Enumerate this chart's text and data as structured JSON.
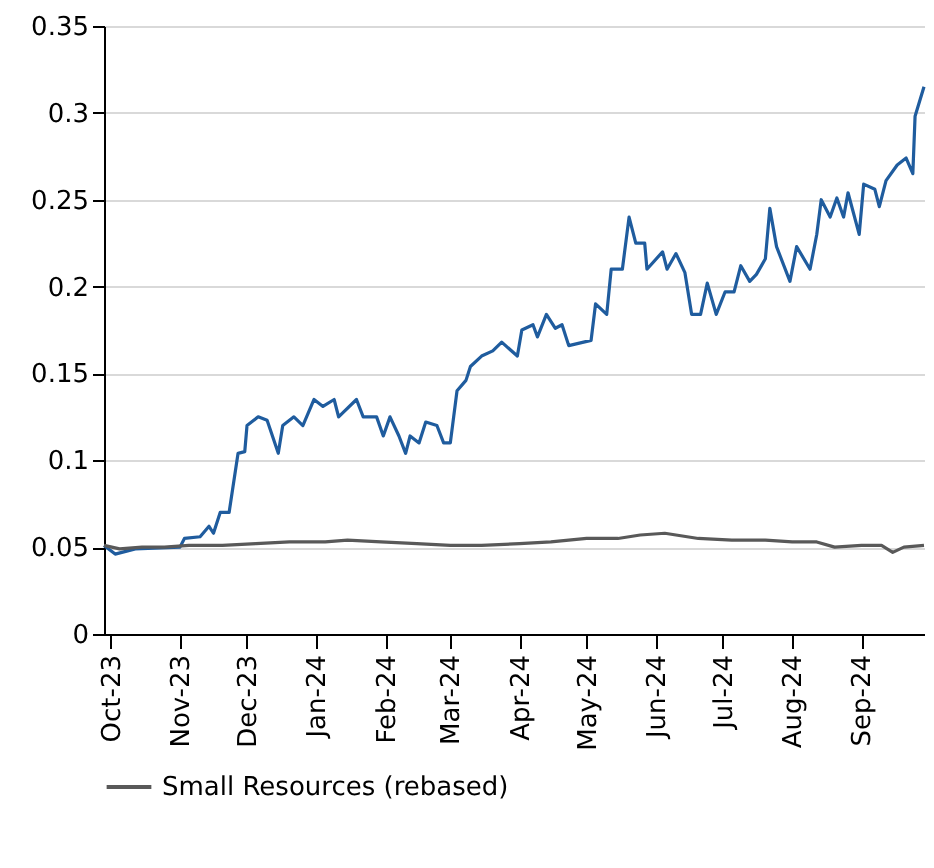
{
  "chart_data": {
    "type": "line",
    "xlim": [
      "2023-09-28",
      "2024-09-29"
    ],
    "xticks": [
      {
        "value": "2023-10-01",
        "label": "Oct-23"
      },
      {
        "value": "2023-11-01",
        "label": "Nov-23"
      },
      {
        "value": "2023-12-01",
        "label": "Dec-23"
      },
      {
        "value": "2024-01-01",
        "label": "Jan-24"
      },
      {
        "value": "2024-02-01",
        "label": "Feb-24"
      },
      {
        "value": "2024-03-01",
        "label": "Mar-24"
      },
      {
        "value": "2024-04-01",
        "label": "Apr-24"
      },
      {
        "value": "2024-05-01",
        "label": "May-24"
      },
      {
        "value": "2024-06-01",
        "label": "Jun-24"
      },
      {
        "value": "2024-07-01",
        "label": "Jul-24"
      },
      {
        "value": "2024-08-01",
        "label": "Aug-24"
      },
      {
        "value": "2024-09-01",
        "label": "Sep-24"
      }
    ],
    "ylim": [
      0,
      0.35
    ],
    "yticks": [
      0,
      0.05,
      0.1,
      0.15,
      0.2,
      0.25,
      0.3,
      0.35
    ],
    "grid": "y",
    "legend": "bottom",
    "line_style": "solid",
    "series": [
      {
        "color": "#1f5c9e",
        "x": [
          "2023-09-28",
          "2023-10-03",
          "2023-10-12",
          "2023-11-01",
          "2023-11-03",
          "2023-11-10",
          "2023-11-14",
          "2023-11-16",
          "2023-11-19",
          "2023-11-23",
          "2023-11-27",
          "2023-11-30",
          "2023-12-01",
          "2023-12-06",
          "2023-12-10",
          "2023-12-15",
          "2023-12-17",
          "2023-12-22",
          "2023-12-26",
          "2023-12-31",
          "2024-01-04",
          "2024-01-09",
          "2024-01-11",
          "2024-01-19",
          "2024-01-22",
          "2024-01-28",
          "2024-01-31",
          "2024-02-03",
          "2024-02-07",
          "2024-02-10",
          "2024-02-12",
          "2024-02-16",
          "2024-02-19",
          "2024-02-24",
          "2024-02-27",
          "2024-03-01",
          "2024-03-04",
          "2024-03-08",
          "2024-03-10",
          "2024-03-15",
          "2024-03-20",
          "2024-03-24",
          "2024-03-31",
          "2024-04-02",
          "2024-04-07",
          "2024-04-09",
          "2024-04-13",
          "2024-04-17",
          "2024-04-20",
          "2024-04-23",
          "2024-05-03",
          "2024-05-05",
          "2024-05-10",
          "2024-05-12",
          "2024-05-17",
          "2024-05-20",
          "2024-05-23",
          "2024-05-27",
          "2024-05-28",
          "2024-06-04",
          "2024-06-06",
          "2024-06-10",
          "2024-06-14",
          "2024-06-17",
          "2024-06-21",
          "2024-06-24",
          "2024-06-28",
          "2024-07-02",
          "2024-07-06",
          "2024-07-09",
          "2024-07-13",
          "2024-07-16",
          "2024-07-20",
          "2024-07-22",
          "2024-07-25",
          "2024-07-31",
          "2024-08-03",
          "2024-08-09",
          "2024-08-12",
          "2024-08-14",
          "2024-08-18",
          "2024-08-21",
          "2024-08-24",
          "2024-08-26",
          "2024-08-31",
          "2024-09-02",
          "2024-09-07",
          "2024-09-09",
          "2024-09-12",
          "2024-09-17",
          "2024-09-21",
          "2024-09-24",
          "2024-09-25",
          "2024-09-29"
        ],
        "values": [
          0.051,
          0.046,
          0.049,
          0.05,
          0.055,
          0.056,
          0.062,
          0.058,
          0.07,
          0.07,
          0.104,
          0.105,
          0.12,
          0.125,
          0.123,
          0.104,
          0.12,
          0.125,
          0.12,
          0.135,
          0.131,
          0.135,
          0.125,
          0.135,
          0.125,
          0.125,
          0.114,
          0.125,
          0.114,
          0.104,
          0.114,
          0.11,
          0.122,
          0.12,
          0.11,
          0.11,
          0.14,
          0.146,
          0.154,
          0.16,
          0.163,
          0.168,
          0.16,
          0.175,
          0.178,
          0.171,
          0.184,
          0.176,
          0.178,
          0.166,
          0.169,
          0.19,
          0.184,
          0.21,
          0.21,
          0.24,
          0.225,
          0.225,
          0.21,
          0.22,
          0.21,
          0.219,
          0.208,
          0.184,
          0.184,
          0.202,
          0.184,
          0.197,
          0.197,
          0.212,
          0.203,
          0.207,
          0.216,
          0.245,
          0.223,
          0.203,
          0.223,
          0.21,
          0.23,
          0.25,
          0.24,
          0.251,
          0.24,
          0.254,
          0.23,
          0.259,
          0.256,
          0.246,
          0.261,
          0.27,
          0.274,
          0.265,
          0.298,
          0.315
        ]
      },
      {
        "name": "Small Resources (rebased)",
        "color": "#595959",
        "x": [
          "2023-09-28",
          "2023-10-05",
          "2023-10-15",
          "2023-10-25",
          "2023-11-05",
          "2023-11-20",
          "2023-12-05",
          "2023-12-20",
          "2024-01-05",
          "2024-01-15",
          "2024-01-30",
          "2024-02-15",
          "2024-03-01",
          "2024-03-15",
          "2024-04-01",
          "2024-04-15",
          "2024-05-01",
          "2024-05-15",
          "2024-05-25",
          "2024-06-05",
          "2024-06-20",
          "2024-07-05",
          "2024-07-20",
          "2024-08-01",
          "2024-08-12",
          "2024-08-20",
          "2024-09-01",
          "2024-09-10",
          "2024-09-15",
          "2024-09-20",
          "2024-09-29"
        ],
        "values": [
          0.051,
          0.049,
          0.05,
          0.05,
          0.051,
          0.051,
          0.052,
          0.053,
          0.053,
          0.054,
          0.053,
          0.052,
          0.051,
          0.051,
          0.052,
          0.053,
          0.055,
          0.055,
          0.057,
          0.058,
          0.055,
          0.054,
          0.054,
          0.053,
          0.053,
          0.05,
          0.051,
          0.051,
          0.047,
          0.05,
          0.051
        ]
      }
    ]
  }
}
